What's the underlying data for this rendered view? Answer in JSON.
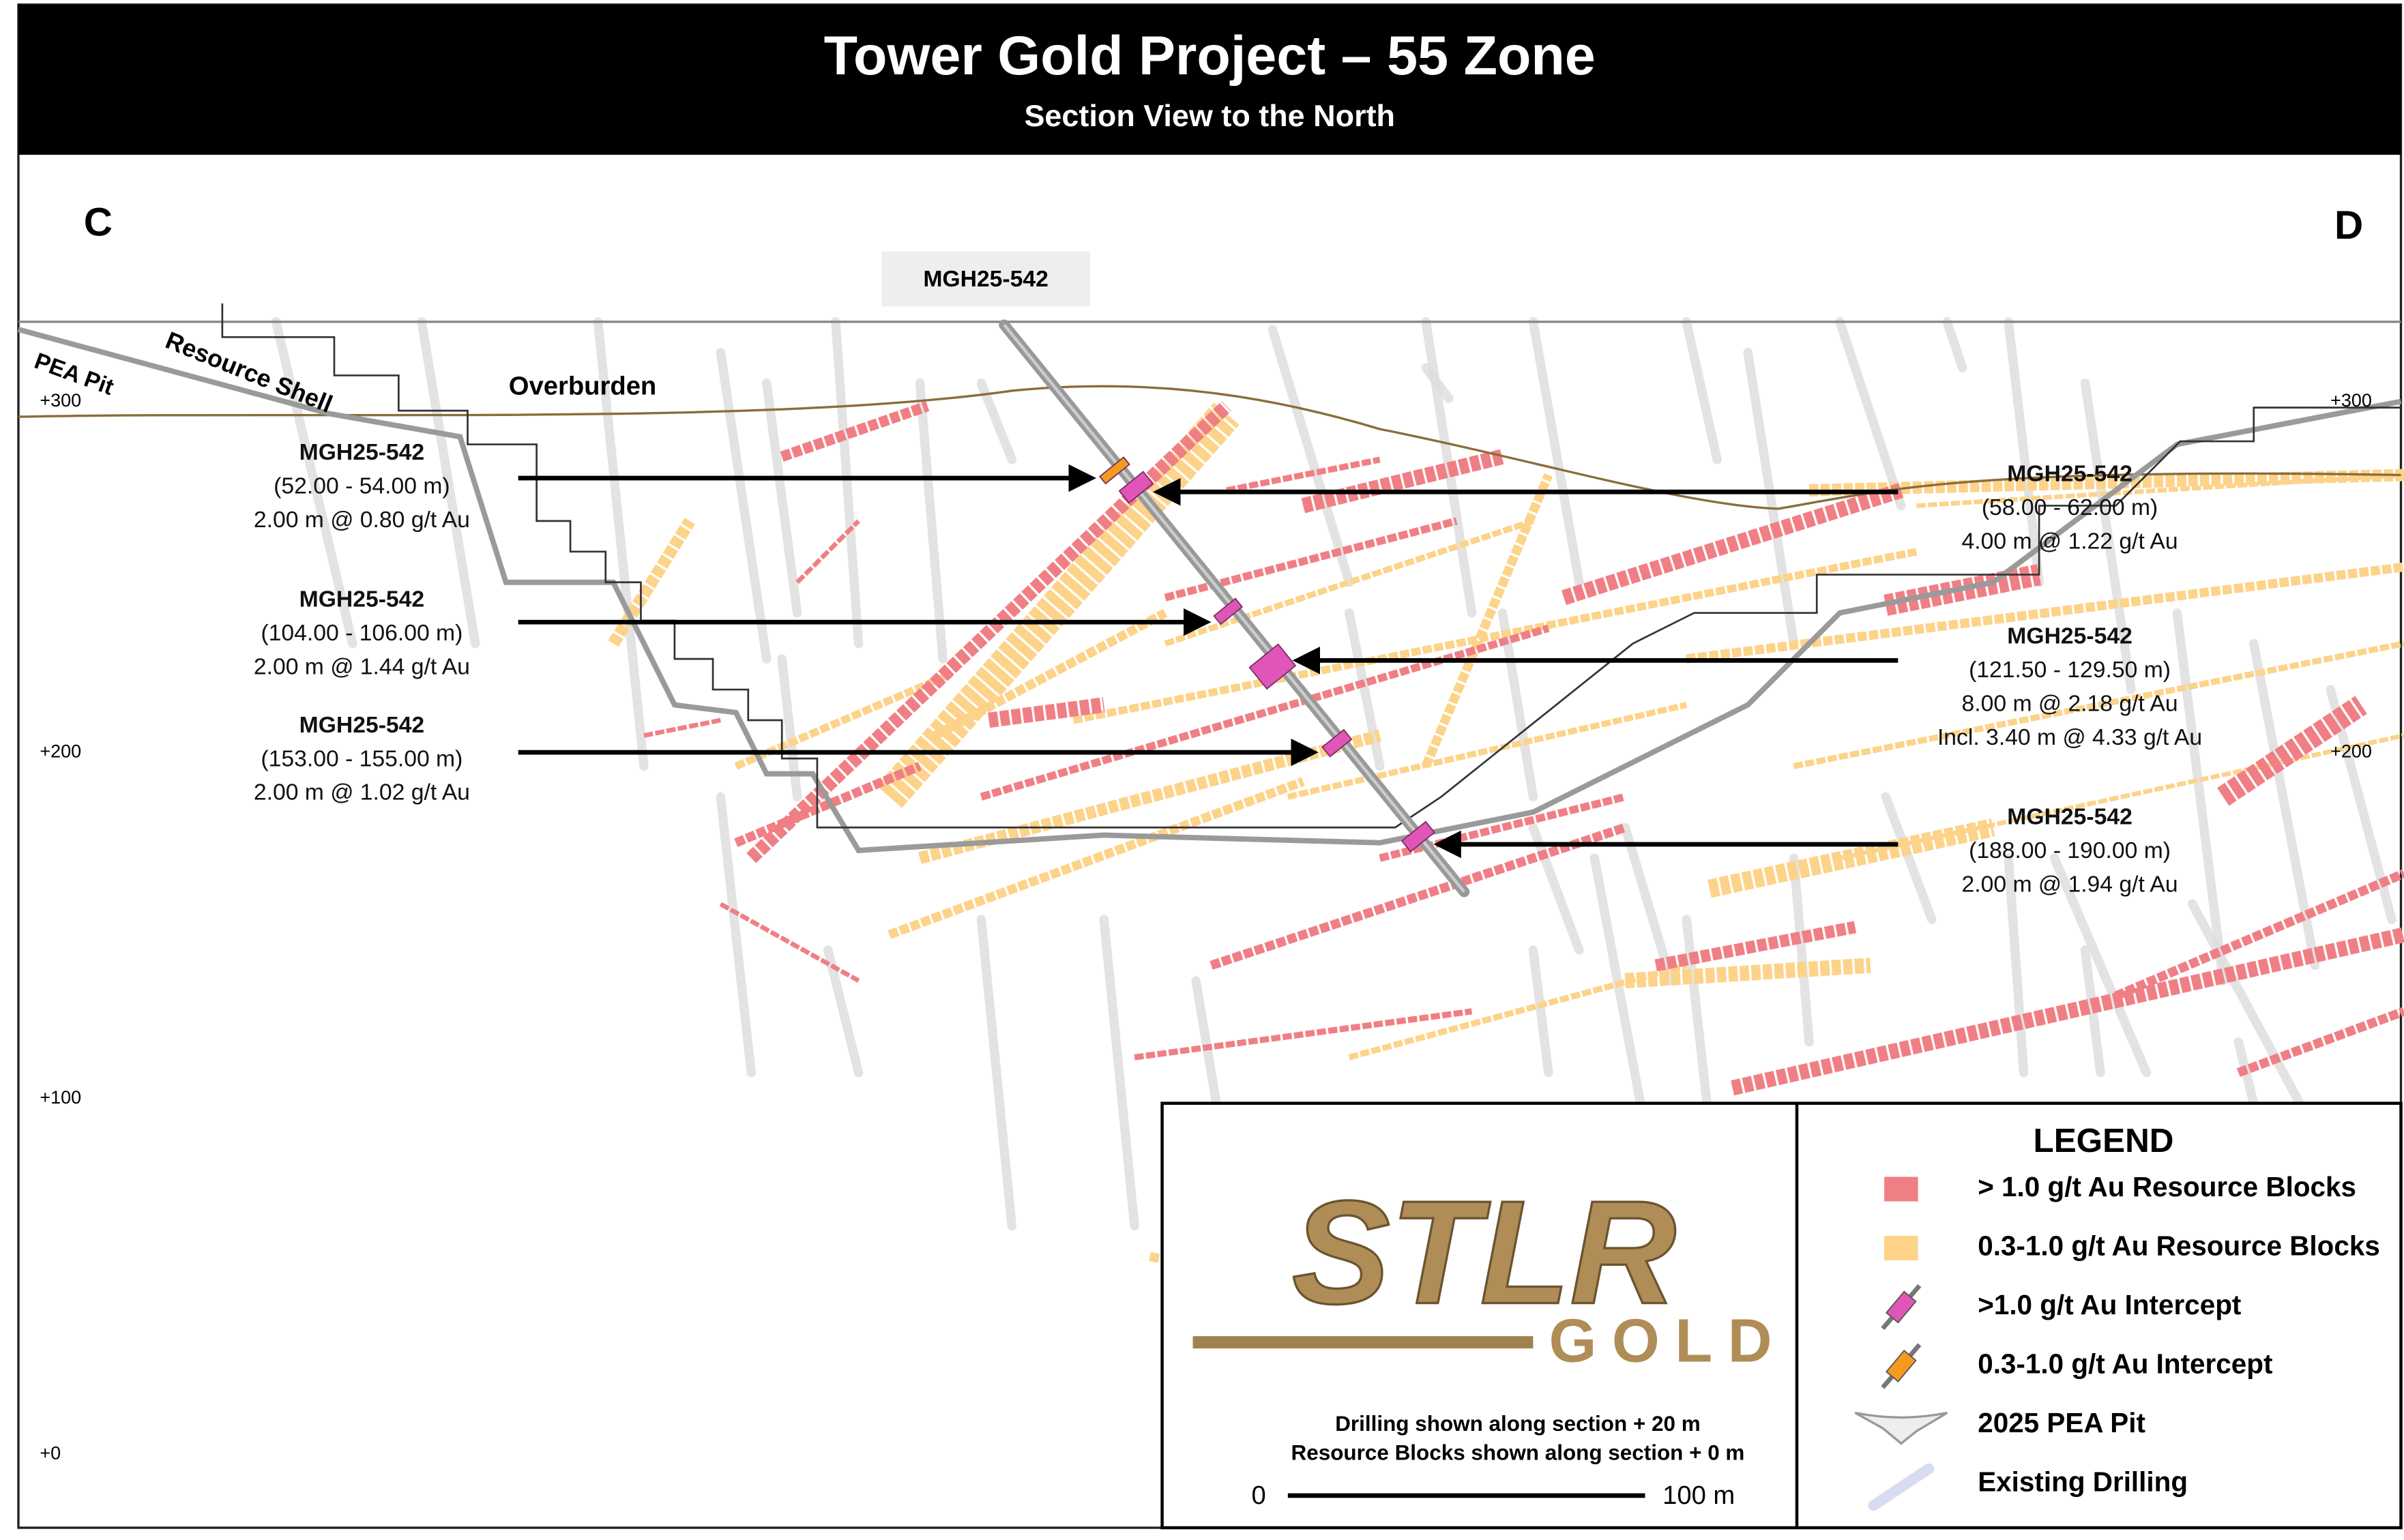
{
  "header": {
    "title": "Tower Gold Project – 55 Zone",
    "subtitle": "Section View to the North"
  },
  "section": {
    "start_label": "C",
    "end_label": "D",
    "hole_label": "MGH25-542",
    "pit_label": "PEA Pit",
    "shell_label": "Resource Shell",
    "overburden_label": "Overburden",
    "elevations_left": [
      "+300",
      "+200",
      "+100",
      "+0"
    ],
    "elevations_right": [
      "+300",
      "+200"
    ]
  },
  "intercepts": [
    {
      "hole": "MGH25-542",
      "interval": "(52.00 - 54.00 m)",
      "grade": "2.00 m @ 0.80 g/t Au"
    },
    {
      "hole": "MGH25-542",
      "interval": "(104.00 - 106.00 m)",
      "grade": "2.00 m @ 1.44 g/t Au"
    },
    {
      "hole": "MGH25-542",
      "interval": "(153.00 - 155.00 m)",
      "grade": "2.00 m @ 1.02 g/t Au"
    },
    {
      "hole": "MGH25-542",
      "interval": "(58.00 - 62.00 m)",
      "grade": "4.00 m @ 1.22 g/t Au"
    },
    {
      "hole": "MGH25-542",
      "interval": "(121.50 - 129.50 m)",
      "grade": "8.00 m @ 2.18 g/t Au",
      "included": "Incl. 3.40 m @ 4.33 g/t Au"
    },
    {
      "hole": "MGH25-542",
      "interval": "(188.00 - 190.00 m)",
      "grade": "2.00 m @ 1.94 g/t Au"
    }
  ],
  "logo": {
    "mark": "STLR",
    "word": "GOLD"
  },
  "notes": [
    "Drilling shown along section + 20 m",
    "Resource Blocks shown along section + 0 m"
  ],
  "scale_bar": {
    "start": "0",
    "end": "100 m"
  },
  "legend": {
    "title": "LEGEND",
    "items": [
      "> 1.0 g/t Au Resource Blocks",
      "0.3-1.0 g/t Au Resource Blocks",
      ">1.0 g/t Au Intercept",
      "0.3-1.0 g/t Au Intercept",
      "2025 PEA Pit",
      "Existing Drilling"
    ]
  }
}
